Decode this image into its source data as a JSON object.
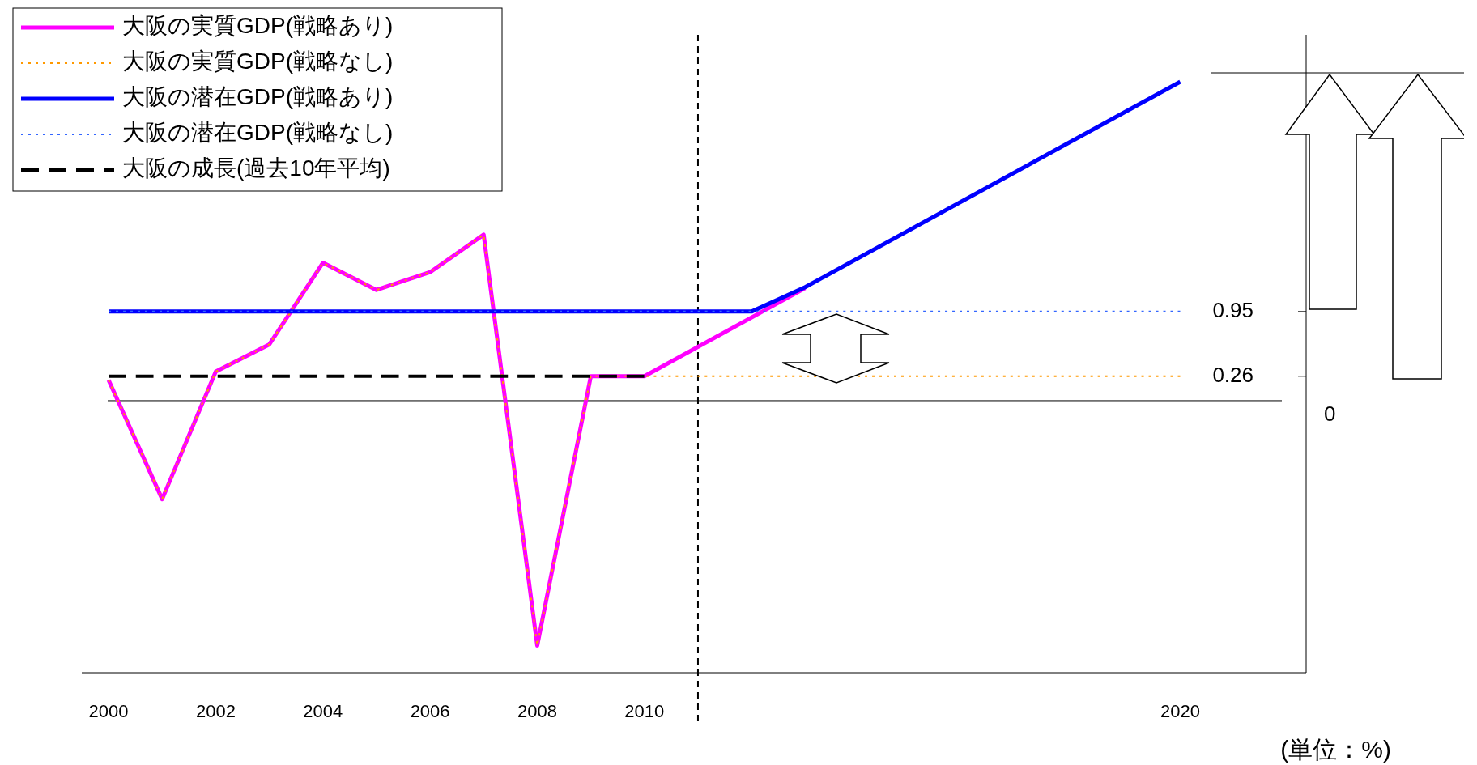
{
  "chart_data": {
    "type": "line",
    "series": [
      {
        "name": "大阪の実質GDP(戦略あり)",
        "color": "#ff00ff",
        "line_style": "solid",
        "x": [
          2000,
          2001,
          2002,
          2003,
          2004,
          2005,
          2006,
          2007,
          2008,
          2009,
          2010,
          2013
        ],
        "values": [
          0.22,
          -1.05,
          0.31,
          0.6,
          1.47,
          1.18,
          1.37,
          1.77,
          -2.61,
          0.26,
          0.26,
          1.2
        ]
      },
      {
        "name": "大阪の実質GDP(戦略なし)",
        "color": "#ff9900",
        "line_style": "dotted",
        "x": [
          2000,
          2001,
          2002,
          2003,
          2004,
          2005,
          2006,
          2007,
          2008,
          2009,
          2010,
          2020
        ],
        "values": [
          0.22,
          -1.05,
          0.31,
          0.6,
          1.47,
          1.18,
          1.37,
          1.77,
          -2.61,
          0.26,
          0.26,
          0.26
        ]
      },
      {
        "name": "大阪の潜在GDP(戦略あり)",
        "color": "#0000ff",
        "line_style": "solid",
        "x": [
          2000,
          2012,
          2013,
          2020
        ],
        "values": [
          0.95,
          0.95,
          1.21,
          3.4
        ]
      },
      {
        "name": "大阪の潜在GDP(戦略なし)",
        "color": "#3366ff",
        "line_style": "dotted",
        "x": [
          2000,
          2020
        ],
        "values": [
          0.95,
          0.95
        ]
      },
      {
        "name": "大阪の成長(過去10年平均)",
        "color": "#000000",
        "line_style": "dashed",
        "x": [
          2000,
          2010
        ],
        "values": [
          0.26,
          0.26
        ]
      }
    ],
    "xlim": [
      1999.5,
      2022.35
    ],
    "xticks": [
      2000,
      2002,
      2004,
      2006,
      2008,
      2010,
      2020
    ],
    "ylim": [
      -2.9,
      3.9
    ],
    "yticks": [
      0.26,
      0.95
    ],
    "ref_lines": [
      {
        "axis": "y",
        "value": 0,
        "label": "0"
      },
      {
        "axis": "x",
        "value": 2011,
        "line_style": "dashed"
      }
    ],
    "legend": "top left",
    "grid": false,
    "annotations": [
      "(単位：%)"
    ]
  }
}
